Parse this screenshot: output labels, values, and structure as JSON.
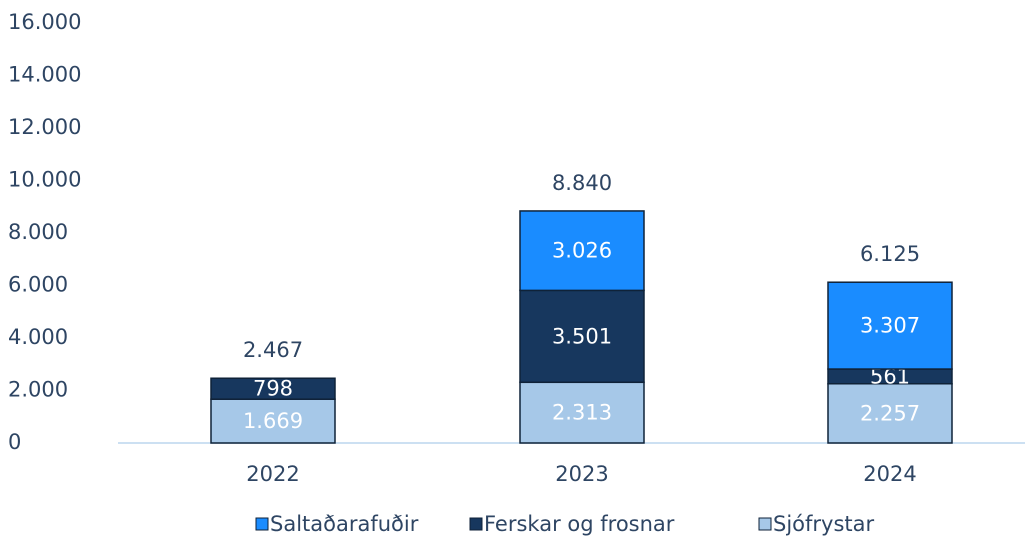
{
  "chart_data": {
    "type": "stacked_bar",
    "categories": [
      "2022",
      "2023",
      "2024"
    ],
    "series": [
      {
        "name": "Saltaðarafuðir",
        "color": "#1a8cff",
        "values": [
          null,
          3026,
          3307
        ],
        "value_labels": [
          null,
          "3.026",
          "3.307"
        ]
      },
      {
        "name": "Ferskar og frosnar",
        "color": "#17375e",
        "values": [
          798,
          3501,
          561
        ],
        "value_labels": [
          "798",
          "3.501",
          "561"
        ]
      },
      {
        "name": "Sjófrystar",
        "color": "#a6c8e8",
        "values": [
          1669,
          2313,
          2257
        ],
        "value_labels": [
          "1.669",
          "2.313",
          "2.257"
        ]
      }
    ],
    "totals": {
      "values": [
        2467,
        8840,
        6125
      ],
      "value_labels": [
        "2.467",
        "8.840",
        "6.125"
      ]
    },
    "ylim": [
      0,
      16000
    ],
    "yticks": [
      0,
      {
        "value": 2000,
        "label": "2.000"
      },
      {
        "value": 4000,
        "label": "4.000"
      },
      {
        "value": 6000,
        "label": "6.000"
      },
      {
        "value": 8000,
        "label": "8.000"
      },
      {
        "value": 10000,
        "label": "10.000"
      },
      {
        "value": 12000,
        "label": "12.000"
      },
      {
        "value": 14000,
        "label": "14.000"
      },
      {
        "value": 16000,
        "label": "16.000"
      }
    ],
    "grid": false,
    "legend": "bottom"
  }
}
